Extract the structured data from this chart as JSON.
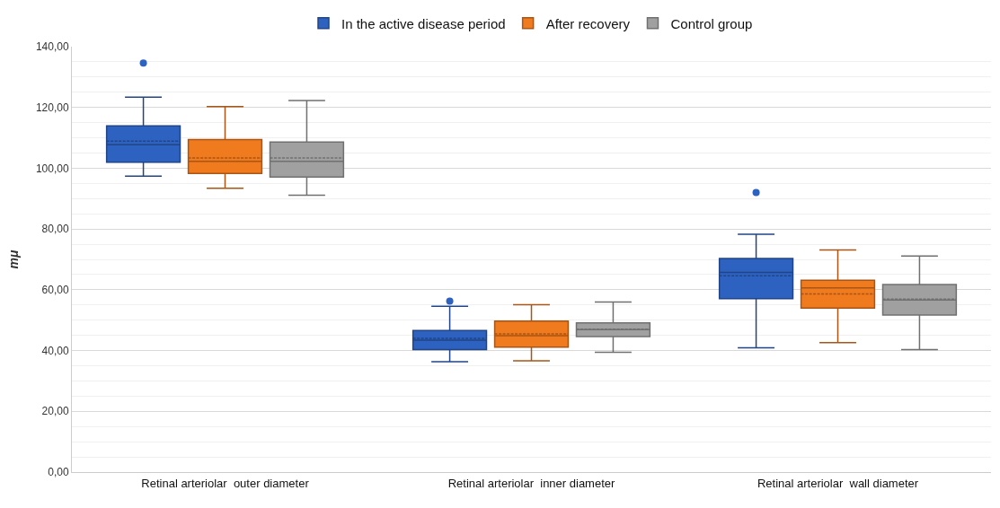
{
  "chart_data": {
    "type": "box",
    "ylabel": "mμ",
    "categories": [
      "Retinal arteriolar  outer diameter",
      "Retinal arteriolar  inner diameter",
      "Retinal arteriolar  wall diameter"
    ],
    "ylim": [
      0,
      140
    ],
    "yticks": [
      {
        "value": 0,
        "label": "0,00"
      },
      {
        "value": 20,
        "label": "20,00"
      },
      {
        "value": 40,
        "label": "40,00"
      },
      {
        "value": 60,
        "label": "60,00"
      },
      {
        "value": 80,
        "label": "80,00"
      },
      {
        "value": 100,
        "label": "100,00"
      },
      {
        "value": 120,
        "label": "120,00"
      },
      {
        "value": 140,
        "label": "140,00"
      }
    ],
    "grid": "y",
    "legend": "top",
    "marker": "circle",
    "series": [
      {
        "name": "In the active disease period",
        "color": "#2e62c0",
        "boxes": [
          {
            "low": 97.4,
            "q1": 102,
            "median": 107.7,
            "q3": 113.9,
            "high": 123.4,
            "mean": 108.9,
            "outliers": [
              134.6
            ]
          },
          {
            "low": 36.3,
            "q1": 40.3,
            "median": 43.4,
            "q3": 46.6,
            "high": 54.6,
            "mean": 44,
            "outliers": [
              56.3
            ]
          },
          {
            "low": 40.9,
            "q1": 57.1,
            "median": 65.7,
            "q3": 70.3,
            "high": 78.3,
            "mean": 64.6,
            "outliers": [
              92
            ]
          }
        ]
      },
      {
        "name": "After recovery",
        "color": "#f07a1e",
        "boxes": [
          {
            "low": 93.4,
            "q1": 98.3,
            "median": 102.3,
            "q3": 109.4,
            "high": 120.3,
            "mean": 103.4
          },
          {
            "low": 36.6,
            "q1": 41.1,
            "median": 44.9,
            "q3": 49.7,
            "high": 55.1,
            "mean": 45.5
          },
          {
            "low": 42.6,
            "q1": 54,
            "median": 60.6,
            "q3": 63.1,
            "high": 73.1,
            "mean": 58.6
          }
        ]
      },
      {
        "name": "Control group",
        "color": "#a0a0a0",
        "boxes": [
          {
            "low": 91.1,
            "q1": 97.1,
            "median": 102.3,
            "q3": 108.6,
            "high": 122.3,
            "mean": 103.4
          },
          {
            "low": 39.4,
            "q1": 44.6,
            "median": 46.9,
            "q3": 49.1,
            "high": 56,
            "mean": 47
          },
          {
            "low": 40.3,
            "q1": 51.7,
            "median": 56.6,
            "q3": 61.7,
            "high": 71.1,
            "mean": 56.9
          }
        ]
      }
    ]
  }
}
